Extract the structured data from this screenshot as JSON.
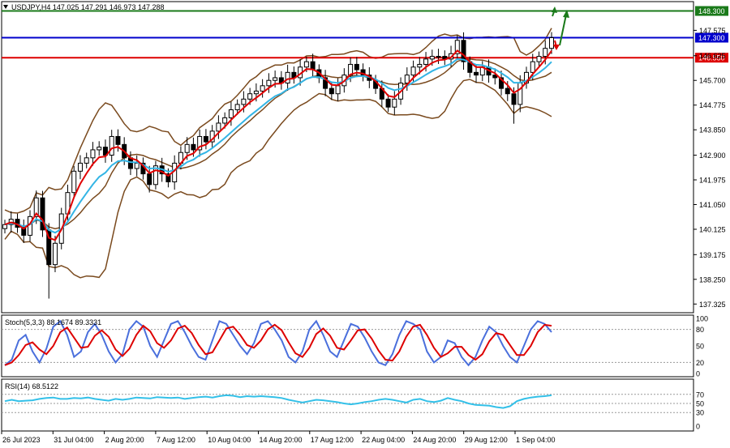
{
  "header": {
    "symbol_info": "USDJPY,H4  147.025 147.291 146.973 147.288",
    "stoch_info": "Stoch(5,3,3) 88.1674 89.3331",
    "rsi_info": "RSI(14) 68.5122"
  },
  "colors": {
    "bg": "#ffffff",
    "bull": "#ffffff",
    "bear": "#000000",
    "bollinger": "#7a4a1e",
    "ema_fast": "#e00000",
    "ema_slow": "#33b5e5",
    "level_top": "#1a7a1a",
    "level_mid": "#0000cc",
    "level_low": "#dd0000",
    "stoch_main": "#4a6fdc",
    "stoch_signal": "#dd0000",
    "rsi_line": "#33c0e8"
  },
  "levels": [
    {
      "name": "level-148300",
      "value": 148.3,
      "label": "148.300",
      "color": "#1a7a1a"
    },
    {
      "name": "level-147300",
      "value": 147.3,
      "label": "147.300",
      "color": "#0000cc"
    },
    {
      "name": "level-146550",
      "value": 146.55,
      "label": "146.550",
      "color": "#dd0000"
    }
  ],
  "chart_data": {
    "type": "candlestick",
    "price_axis": {
      "min": 137.0,
      "max": 148.65,
      "ticks": [
        "147.575",
        "146.625",
        "145.700",
        "144.775",
        "143.850",
        "142.900",
        "141.975",
        "141.050",
        "140.125",
        "139.175",
        "138.250",
        "137.325"
      ]
    },
    "x_labels": [
      "26 Jul 2023",
      "31 Jul 04:00",
      "2 Aug 20:00",
      "7 Aug 12:00",
      "10 Aug 04:00",
      "14 Aug 20:00",
      "17 Aug 12:00",
      "22 Aug 04:00",
      "24 Aug 20:00",
      "29 Aug 12:00",
      "1 Sep 04:00"
    ],
    "price_path": [
      140.3,
      140.5,
      140.2,
      139.9,
      140.6,
      141.3,
      140.1,
      138.8,
      139.6,
      140.7,
      141.5,
      142.3,
      142.6,
      142.8,
      143.1,
      143.2,
      142.9,
      143.6,
      143.3,
      142.8,
      142.4,
      142.6,
      142.2,
      141.8,
      142.5,
      142.2,
      141.9,
      142.6,
      143.0,
      143.3,
      143.1,
      143.6,
      143.4,
      143.8,
      144.1,
      144.3,
      144.6,
      144.8,
      145.0,
      145.2,
      145.3,
      145.5,
      145.7,
      145.8,
      145.6,
      146.0,
      145.8,
      146.2,
      146.4,
      146.1,
      145.8,
      145.4,
      145.2,
      145.5,
      145.9,
      146.3,
      146.1,
      145.9,
      145.7,
      145.4,
      145.0,
      144.7,
      145.0,
      145.6,
      145.9,
      146.2,
      146.3,
      146.5,
      146.6,
      146.6,
      146.5,
      146.7,
      147.2,
      146.4,
      146.0,
      145.9,
      146.2,
      145.9,
      145.8,
      145.4,
      145.2,
      144.8,
      145.6,
      146.0,
      146.4,
      146.6,
      146.9,
      147.3
    ],
    "stoch_path": [
      15,
      25,
      60,
      70,
      40,
      20,
      45,
      85,
      95,
      70,
      30,
      40,
      75,
      90,
      70,
      40,
      20,
      35,
      80,
      95,
      85,
      50,
      30,
      60,
      90,
      95,
      75,
      50,
      30,
      25,
      60,
      95,
      90,
      70,
      50,
      35,
      55,
      90,
      95,
      80,
      60,
      30,
      20,
      40,
      80,
      95,
      70,
      40,
      30,
      60,
      90,
      85,
      65,
      40,
      20,
      15,
      35,
      70,
      95,
      90,
      80,
      40,
      20,
      30,
      60,
      55,
      30,
      15,
      30,
      60,
      85,
      75,
      50,
      30,
      20,
      50,
      80,
      95,
      90,
      75
    ],
    "rsi_path": [
      55,
      58,
      55,
      56,
      57,
      60,
      62,
      63,
      60,
      60,
      62,
      61,
      63,
      60,
      58,
      56,
      60,
      58,
      60,
      63,
      62,
      61,
      64,
      63,
      62,
      63,
      60,
      62,
      64,
      65,
      63,
      66,
      68,
      67,
      64,
      66,
      65,
      66,
      65,
      64,
      62,
      58,
      55,
      52,
      55,
      58,
      57,
      55,
      53,
      50,
      48,
      50,
      53,
      55,
      58,
      60,
      58,
      55,
      52,
      58,
      60,
      55,
      53,
      56,
      62,
      58,
      55,
      50,
      47,
      46,
      45,
      42,
      40,
      44,
      55,
      60,
      63,
      65,
      66,
      68
    ],
    "stoch_levels": [
      {
        "label": "100",
        "value": 100
      },
      {
        "label": "80",
        "value": 80
      },
      {
        "label": "50",
        "value": 50
      },
      {
        "label": "20",
        "value": 20
      },
      {
        "label": "0",
        "value": 0
      }
    ],
    "rsi_levels": [
      {
        "label": "70",
        "value": 70
      },
      {
        "label": "50",
        "value": 50
      },
      {
        "label": "30",
        "value": 30
      },
      {
        "label": "0",
        "value": 0
      }
    ]
  }
}
